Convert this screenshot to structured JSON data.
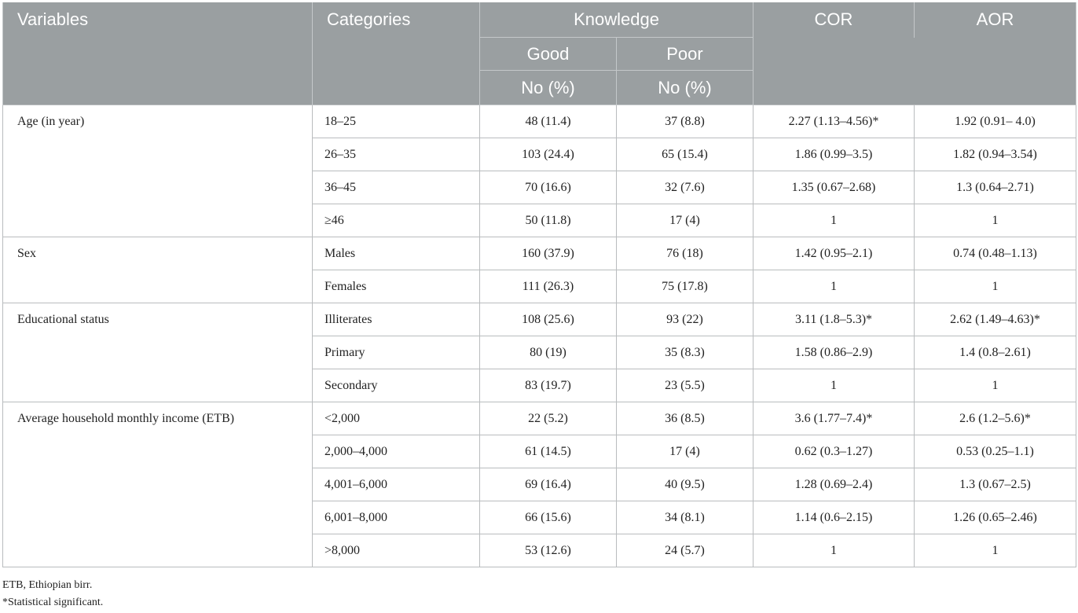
{
  "headers": {
    "variables": "Variables",
    "categories": "Categories",
    "knowledge": "Knowledge",
    "cor": "COR",
    "aor": "AOR",
    "good": "Good",
    "poor": "Poor",
    "good_unit": "No (%)",
    "poor_unit": "No (%)"
  },
  "groups": [
    {
      "variable": "Age (in year)",
      "rows": [
        {
          "category": "18–25",
          "good": "48 (11.4)",
          "poor": "37 (8.8)",
          "cor": "2.27 (1.13–4.56)*",
          "aor": "1.92 (0.91– 4.0)"
        },
        {
          "category": "26–35",
          "good": "103 (24.4)",
          "poor": "65 (15.4)",
          "cor": "1.86 (0.99–3.5)",
          "aor": "1.82 (0.94–3.54)"
        },
        {
          "category": "36–45",
          "good": "70 (16.6)",
          "poor": "32 (7.6)",
          "cor": "1.35 (0.67–2.68)",
          "aor": "1.3 (0.64–2.71)"
        },
        {
          "category": "≥46",
          "good": "50 (11.8)",
          "poor": "17 (4)",
          "cor": "1",
          "aor": "1"
        }
      ]
    },
    {
      "variable": "Sex",
      "rows": [
        {
          "category": "Males",
          "good": "160 (37.9)",
          "poor": "76 (18)",
          "cor": "1.42 (0.95–2.1)",
          "aor": "0.74 (0.48–1.13)"
        },
        {
          "category": "Females",
          "good": "111 (26.3)",
          "poor": "75 (17.8)",
          "cor": "1",
          "aor": "1"
        }
      ]
    },
    {
      "variable": "Educational status",
      "rows": [
        {
          "category": "Illiterates",
          "good": "108 (25.6)",
          "poor": "93 (22)",
          "cor": "3.11 (1.8–5.3)*",
          "aor": "2.62 (1.49–4.63)*"
        },
        {
          "category": "Primary",
          "good": "80 (19)",
          "poor": "35 (8.3)",
          "cor": "1.58 (0.86–2.9)",
          "aor": "1.4 (0.8–2.61)"
        },
        {
          "category": "Secondary",
          "good": "83 (19.7)",
          "poor": "23 (5.5)",
          "cor": "1",
          "aor": "1"
        }
      ]
    },
    {
      "variable": "Average household monthly income (ETB)",
      "rows": [
        {
          "category": "<2,000",
          "good": "22 (5.2)",
          "poor": "36 (8.5)",
          "cor": "3.6 (1.77–7.4)*",
          "aor": "2.6 (1.2–5.6)*"
        },
        {
          "category": "2,000–4,000",
          "good": "61 (14.5)",
          "poor": "17 (4)",
          "cor": "0.62 (0.3–1.27)",
          "aor": "0.53 (0.25–1.1)"
        },
        {
          "category": "4,001–6,000",
          "good": "69 (16.4)",
          "poor": "40 (9.5)",
          "cor": "1.28 (0.69–2.4)",
          "aor": "1.3 (0.67–2.5)"
        },
        {
          "category": "6,001–8,000",
          "good": "66 (15.6)",
          "poor": "34 (8.1)",
          "cor": "1.14 (0.6–2.15)",
          "aor": "1.26 (0.65–2.46)"
        },
        {
          "category": ">8,000",
          "good": "53 (12.6)",
          "poor": "24 (5.7)",
          "cor": "1",
          "aor": "1"
        }
      ]
    }
  ],
  "footnotes": {
    "abbreviation": "ETB, Ethiopian birr.",
    "significance": "*Statistical significant."
  },
  "colors": {
    "header_bg": "#9a9fa1",
    "header_text": "#ffffff",
    "border": "#b9bcbe"
  }
}
